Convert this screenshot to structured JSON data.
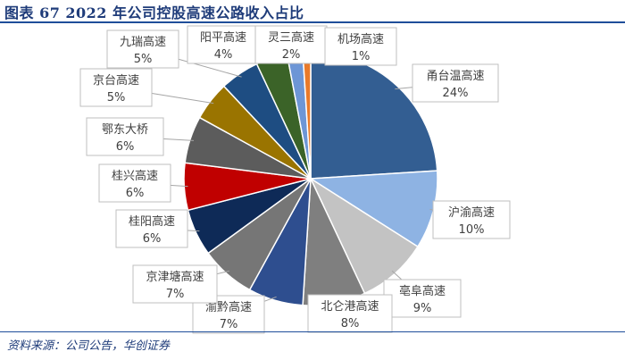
{
  "figure": {
    "title": "图表 67 2022 年公司控股高速公路收入占比",
    "source": "资料来源：公司公告，华创证券"
  },
  "chart_data": {
    "type": "pie",
    "title": "",
    "start": "12 o'clock",
    "direction": "clockwise",
    "slices": [
      {
        "label": "甬台温高速",
        "pct_label": "24%",
        "value": 24,
        "color": "#335e92"
      },
      {
        "label": "沪渝高速",
        "pct_label": "10%",
        "value": 10,
        "color": "#8eb3e3"
      },
      {
        "label": "亳阜高速",
        "pct_label": "9%",
        "value": 9,
        "color": "#c3c3c3"
      },
      {
        "label": "北仑港高速",
        "pct_label": "8%",
        "value": 8,
        "color": "#7f7f7f"
      },
      {
        "label": "渝黔高速",
        "pct_label": "7%",
        "value": 7,
        "color": "#2e4e8f"
      },
      {
        "label": "京津塘高速",
        "pct_label": "7%",
        "value": 7,
        "color": "#767676"
      },
      {
        "label": "桂阳高速",
        "pct_label": "6%",
        "value": 6,
        "color": "#0e2a57"
      },
      {
        "label": "桂兴高速",
        "pct_label": "6%",
        "value": 6,
        "color": "#c00000"
      },
      {
        "label": "鄂东大桥",
        "pct_label": "6%",
        "value": 6,
        "color": "#5c5c5c"
      },
      {
        "label": "京台高速",
        "pct_label": "5%",
        "value": 5,
        "color": "#9a7400"
      },
      {
        "label": "九瑞高速",
        "pct_label": "5%",
        "value": 5,
        "color": "#1e4d82"
      },
      {
        "label": "阳平高速",
        "pct_label": "4%",
        "value": 4,
        "color": "#3b6328"
      },
      {
        "label": "灵三高速",
        "pct_label": "2%",
        "value": 2,
        "color": "#6d96d6"
      },
      {
        "label": "机场高速",
        "pct_label": "1%",
        "value": 1,
        "color": "#e97a2a"
      }
    ]
  }
}
